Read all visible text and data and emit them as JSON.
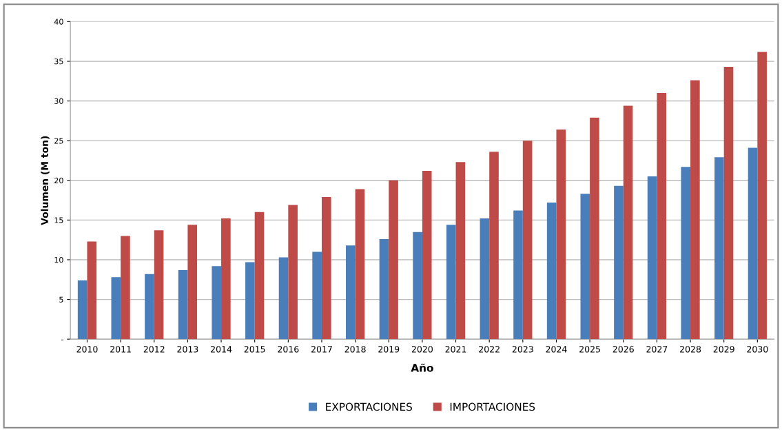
{
  "chart_data": {
    "type": "bar",
    "xlabel": "Año",
    "ylabel": "Volumen (M ton)",
    "categories": [
      "2010",
      "2011",
      "2012",
      "2013",
      "2014",
      "2015",
      "2016",
      "2017",
      "2018",
      "2019",
      "2020",
      "2021",
      "2022",
      "2023",
      "2024",
      "2025",
      "2026",
      "2027",
      "2028",
      "2029",
      "2030"
    ],
    "series": [
      {
        "name": "EXPORTACIONES",
        "color": "#4a7ebb",
        "values": [
          7.4,
          7.8,
          8.2,
          8.7,
          9.2,
          9.7,
          10.3,
          11.0,
          11.8,
          12.6,
          13.5,
          14.4,
          15.2,
          16.2,
          17.2,
          18.3,
          19.3,
          20.5,
          21.7,
          22.9,
          24.1
        ]
      },
      {
        "name": "IMPORTACIONES",
        "color": "#be4b48",
        "values": [
          12.3,
          13.0,
          13.7,
          14.4,
          15.2,
          16.0,
          16.9,
          17.9,
          18.9,
          20.0,
          21.2,
          22.3,
          23.6,
          25.0,
          26.4,
          27.9,
          29.4,
          31.0,
          32.6,
          34.3,
          36.2
        ]
      }
    ],
    "ylim": [
      0,
      40
    ],
    "yticks": [
      {
        "value": 0,
        "label": "-"
      },
      5,
      10,
      15,
      20,
      25,
      30,
      35,
      40
    ],
    "grid": "y",
    "legend": "bottom"
  }
}
